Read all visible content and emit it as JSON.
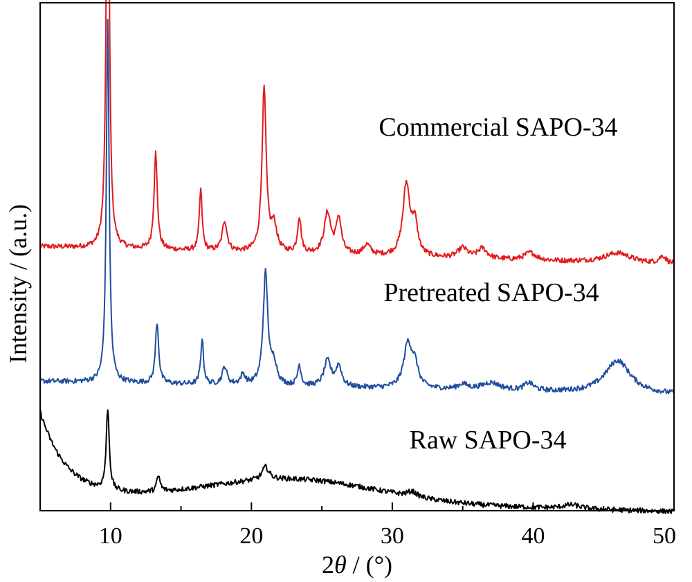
{
  "chart_data": {
    "type": "line",
    "xlabel_parts": [
      "2",
      "θ",
      " / (°)"
    ],
    "ylabel": "Intensity / (a.u.)",
    "xlim": [
      5,
      50
    ],
    "x_ticks": [
      10,
      20,
      30,
      40,
      50
    ],
    "y_ticks": [],
    "grid": false,
    "legend": "none",
    "series": [
      {
        "name": "Commercial SAPO-34",
        "color": "#e31a1c",
        "baseline": 0.52,
        "slope": -0.0008,
        "noise": 0.005,
        "peaks": [
          {
            "x": 9.8,
            "h": 0.98,
            "w": 0.12
          },
          {
            "x": 13.2,
            "h": 0.19,
            "w": 0.14
          },
          {
            "x": 16.4,
            "h": 0.12,
            "w": 0.12
          },
          {
            "x": 18.1,
            "h": 0.06,
            "w": 0.2
          },
          {
            "x": 20.9,
            "h": 0.32,
            "w": 0.18
          },
          {
            "x": 21.6,
            "h": 0.05,
            "w": 0.25
          },
          {
            "x": 23.4,
            "h": 0.07,
            "w": 0.15
          },
          {
            "x": 25.4,
            "h": 0.08,
            "w": 0.28
          },
          {
            "x": 26.2,
            "h": 0.07,
            "w": 0.22
          },
          {
            "x": 28.2,
            "h": 0.02,
            "w": 0.3
          },
          {
            "x": 31.0,
            "h": 0.14,
            "w": 0.3
          },
          {
            "x": 31.6,
            "h": 0.06,
            "w": 0.25
          },
          {
            "x": 35.0,
            "h": 0.02,
            "w": 0.4
          },
          {
            "x": 36.4,
            "h": 0.02,
            "w": 0.4
          },
          {
            "x": 39.8,
            "h": 0.015,
            "w": 0.5
          },
          {
            "x": 46.0,
            "h": 0.02,
            "w": 1.2
          },
          {
            "x": 49.2,
            "h": 0.015,
            "w": 0.3
          }
        ]
      },
      {
        "name": "Pretreated SAPO-34",
        "color": "#1f4e9e",
        "baseline": 0.255,
        "slope": -0.0006,
        "noise": 0.005,
        "peaks": [
          {
            "x": 9.8,
            "h": 0.71,
            "w": 0.12
          },
          {
            "x": 13.3,
            "h": 0.12,
            "w": 0.14
          },
          {
            "x": 16.5,
            "h": 0.09,
            "w": 0.12
          },
          {
            "x": 18.1,
            "h": 0.035,
            "w": 0.2
          },
          {
            "x": 19.4,
            "h": 0.02,
            "w": 0.2
          },
          {
            "x": 21.0,
            "h": 0.22,
            "w": 0.2
          },
          {
            "x": 21.6,
            "h": 0.04,
            "w": 0.25
          },
          {
            "x": 23.4,
            "h": 0.04,
            "w": 0.15
          },
          {
            "x": 25.4,
            "h": 0.05,
            "w": 0.3
          },
          {
            "x": 26.2,
            "h": 0.04,
            "w": 0.25
          },
          {
            "x": 31.1,
            "h": 0.085,
            "w": 0.35
          },
          {
            "x": 31.6,
            "h": 0.04,
            "w": 0.3
          },
          {
            "x": 35.0,
            "h": 0.01,
            "w": 0.4
          },
          {
            "x": 37.0,
            "h": 0.015,
            "w": 0.8
          },
          {
            "x": 39.7,
            "h": 0.015,
            "w": 0.4
          },
          {
            "x": 46.0,
            "h": 0.065,
            "w": 1.1
          }
        ]
      },
      {
        "name": "Raw SAPO-34",
        "color": "#000000",
        "baseline": 0.03,
        "slope": 0.0,
        "noise": 0.005,
        "amorph": {
          "a": 0.165,
          "k": 0.55,
          "hump_x": 23.0,
          "hump_h": 0.045,
          "hump_w": 6.0,
          "tail": -0.0007
        },
        "peaks": [
          {
            "x": 9.8,
            "h": 0.16,
            "w": 0.13
          },
          {
            "x": 13.4,
            "h": 0.03,
            "w": 0.15
          },
          {
            "x": 21.0,
            "h": 0.025,
            "w": 0.3
          },
          {
            "x": 31.4,
            "h": 0.01,
            "w": 0.4
          },
          {
            "x": 42.7,
            "h": 0.008,
            "w": 0.8
          }
        ]
      }
    ]
  }
}
